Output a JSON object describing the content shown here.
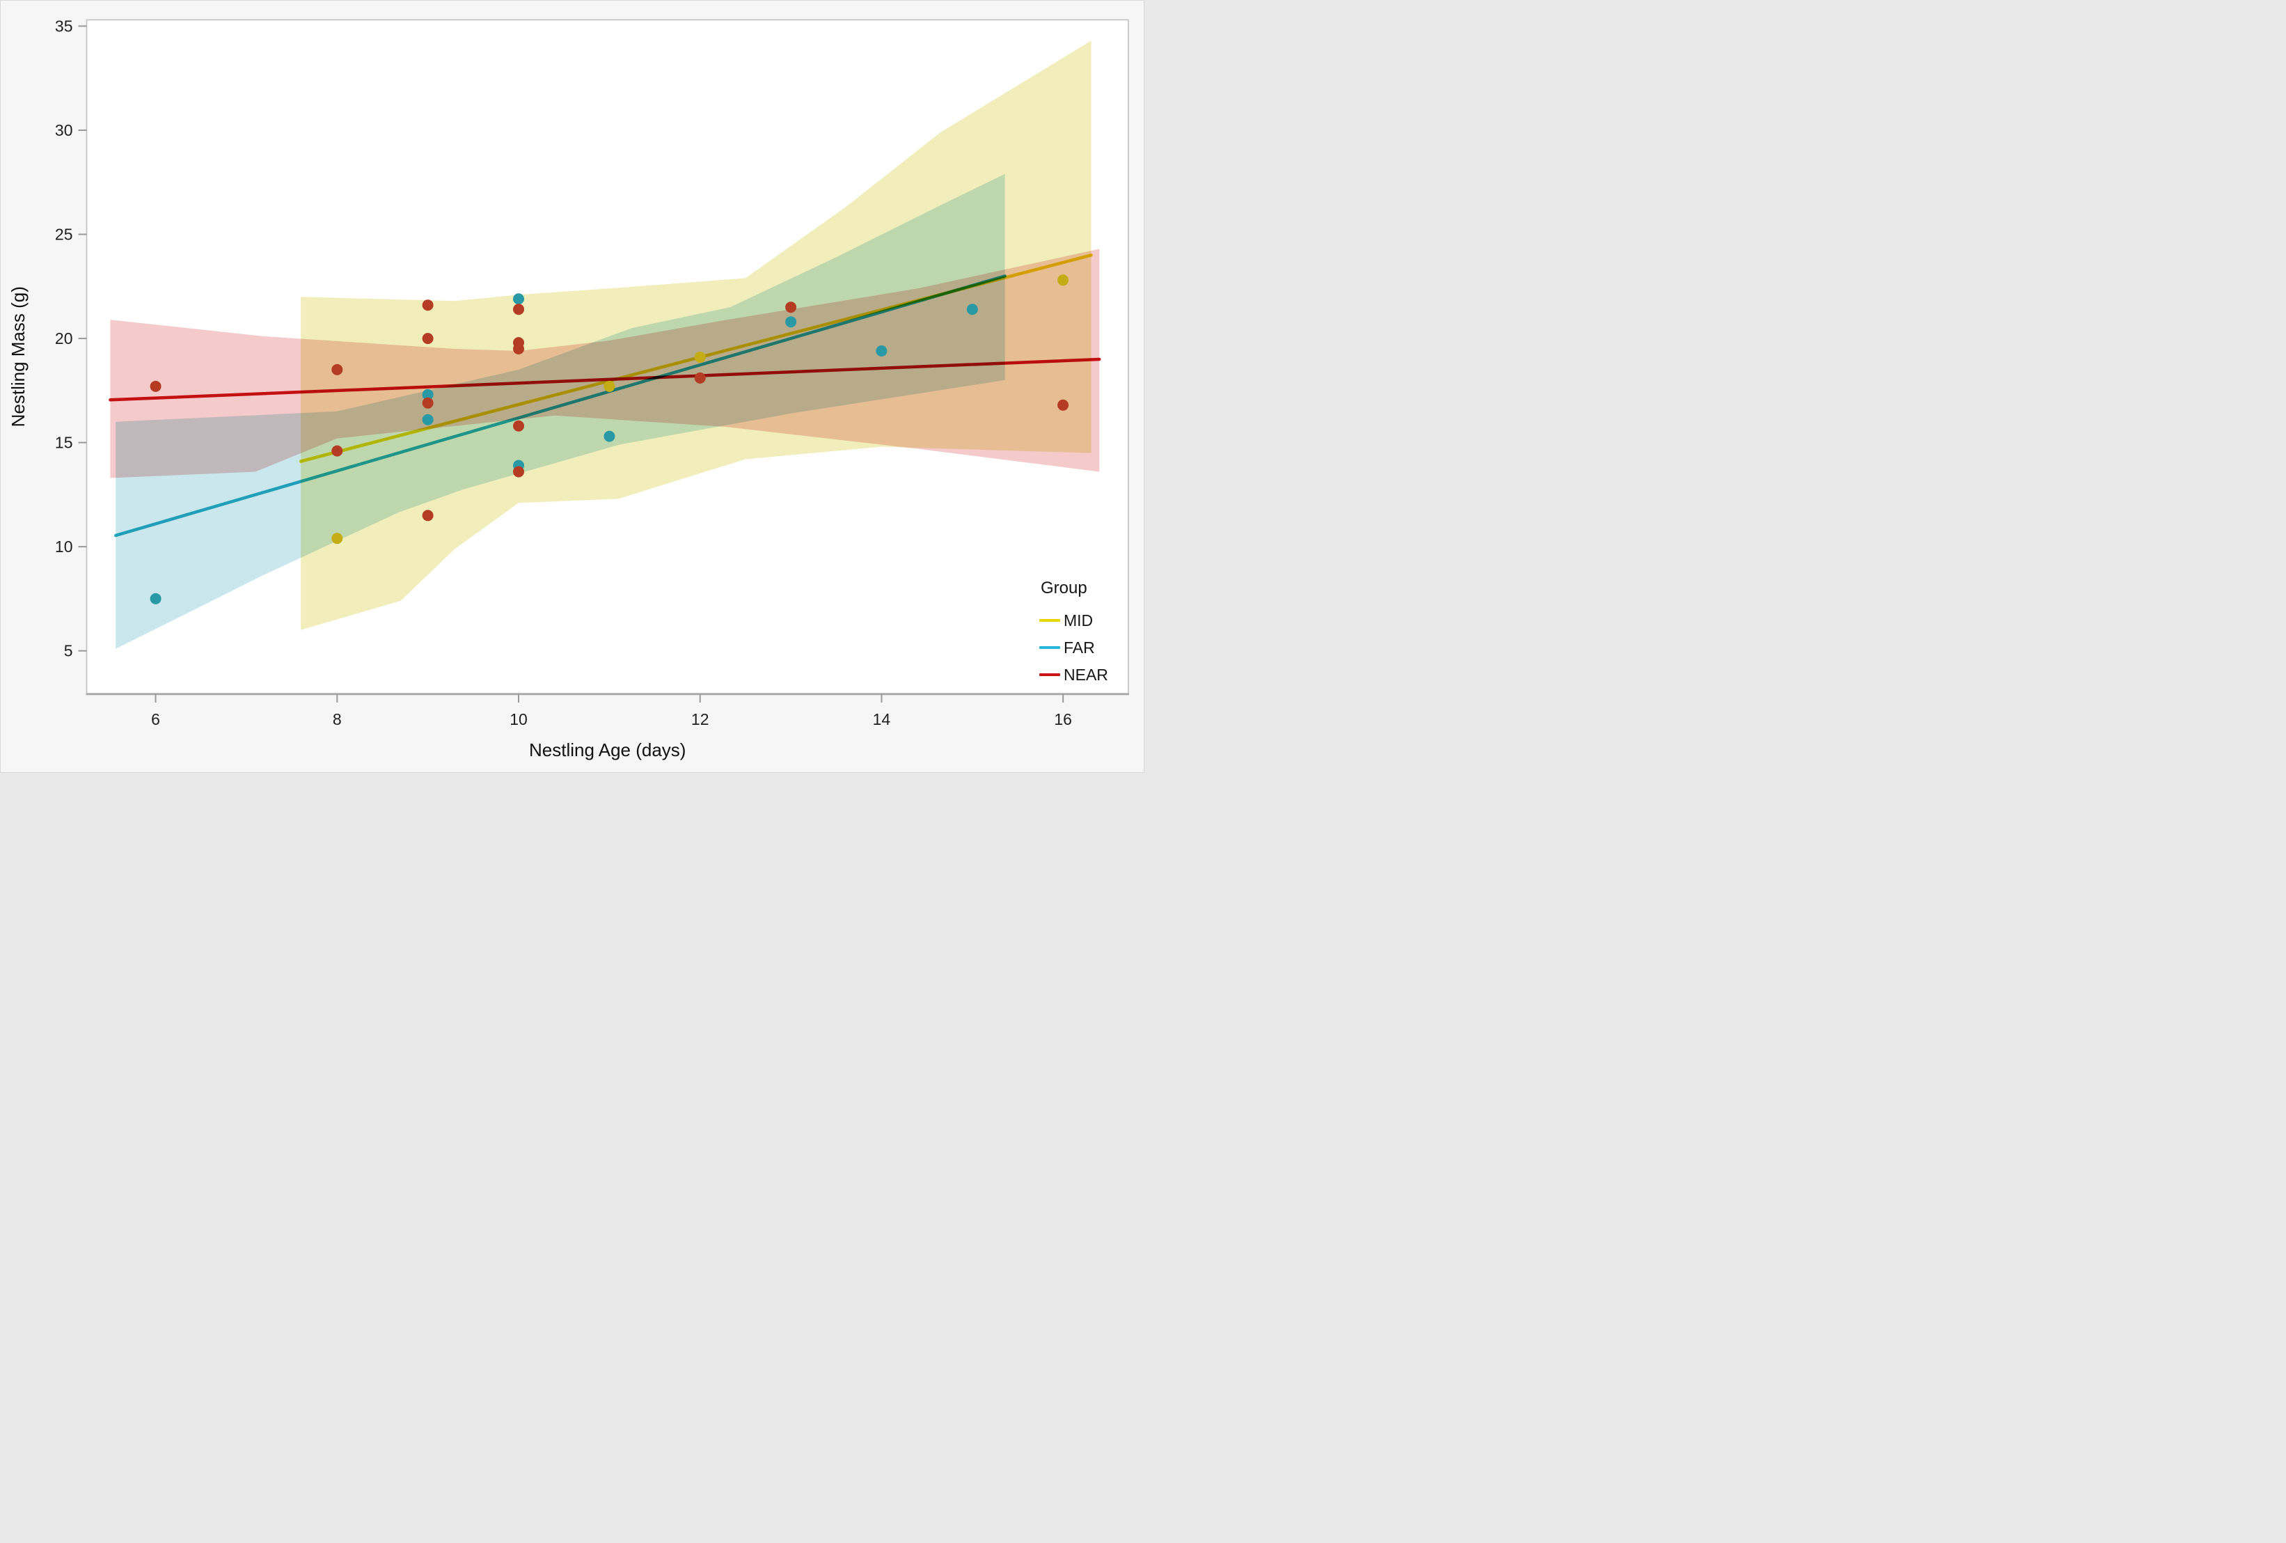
{
  "chart_data": {
    "type": "scatter",
    "title": "",
    "xlabel": "Nestling Age (days)",
    "ylabel": "Nestling Mass (g)",
    "x_ticks": [
      6,
      8,
      10,
      12,
      14,
      16
    ],
    "y_ticks": [
      5,
      10,
      15,
      20,
      25,
      30,
      35
    ],
    "x_range": [
      5.24,
      16.72
    ],
    "y_range": [
      2.95,
      35.3
    ],
    "grid": "off",
    "background_color": "#f6f6f6",
    "plot_background": "#ffffff",
    "frame_color": "#bfbfbf",
    "legend": {
      "title": "Group",
      "position": "bottom-right",
      "entries": [
        {
          "label": "MID",
          "color": "#e5d800"
        },
        {
          "label": "FAR",
          "color": "#29b9d8"
        },
        {
          "label": "NEAR",
          "color": "#cc1414"
        }
      ]
    },
    "series": [
      {
        "name": "MID",
        "line_color": "#ecd600",
        "marker_color": "#c4ad14",
        "band_color": "#f2eebb",
        "fit_line": {
          "x": [
            7.6,
            16.31
          ],
          "y": [
            14.1,
            24.0
          ]
        },
        "band_top": [
          [
            7.6,
            22.0
          ],
          [
            9.3,
            21.8
          ],
          [
            10,
            22.1
          ],
          [
            11,
            22.4
          ],
          [
            12.5,
            22.9
          ],
          [
            13.6,
            26.3
          ],
          [
            14.65,
            29.9
          ],
          [
            16.31,
            34.3
          ]
        ],
        "band_bottom": [
          [
            7.6,
            6.0
          ],
          [
            8.7,
            7.4
          ],
          [
            9.3,
            9.9
          ],
          [
            10,
            12.1
          ],
          [
            11.1,
            12.3
          ],
          [
            12.5,
            14.2
          ],
          [
            14,
            14.8
          ],
          [
            16.31,
            14.5
          ]
        ],
        "points": [
          [
            8,
            10.4
          ],
          [
            11,
            17.7
          ],
          [
            12,
            19.1
          ],
          [
            16,
            22.8
          ]
        ]
      },
      {
        "name": "FAR",
        "line_color": "#29b0c8",
        "marker_color": "#2899a5",
        "band_color": "#c9e7ec",
        "fit_line": {
          "x": [
            5.56,
            15.36
          ],
          "y": [
            10.54,
            23.0
          ]
        },
        "band_top": [
          [
            5.56,
            16.0
          ],
          [
            8,
            16.5
          ],
          [
            10,
            18.5
          ],
          [
            11.25,
            20.5
          ],
          [
            12.33,
            21.5
          ],
          [
            13.5,
            23.9
          ],
          [
            14.65,
            26.4
          ],
          [
            15.36,
            27.9
          ]
        ],
        "band_bottom": [
          [
            5.56,
            5.1
          ],
          [
            6.0,
            6.05
          ],
          [
            7.17,
            8.6
          ],
          [
            8.68,
            11.65
          ],
          [
            9.39,
            12.75
          ],
          [
            11.11,
            14.9
          ],
          [
            13,
            16.4
          ],
          [
            15.36,
            18.0
          ]
        ],
        "points": [
          [
            6,
            7.5
          ],
          [
            9,
            17.3
          ],
          [
            9,
            16.1
          ],
          [
            10,
            21.9
          ],
          [
            10,
            13.9
          ],
          [
            11,
            15.3
          ],
          [
            13,
            20.8
          ],
          [
            14,
            19.4
          ],
          [
            15,
            21.4
          ]
        ]
      },
      {
        "name": "NEAR",
        "line_color": "#cc1414",
        "marker_color": "#b43c22",
        "band_color": "#f4cbca",
        "fit_line": {
          "x": [
            5.5,
            16.4
          ],
          "y": [
            17.05,
            19.0
          ]
        },
        "band_top": [
          [
            5.5,
            20.9
          ],
          [
            7.2,
            20.1
          ],
          [
            9.3,
            19.5
          ],
          [
            10,
            19.4
          ],
          [
            11,
            19.9
          ],
          [
            12.3,
            20.9
          ],
          [
            14.4,
            22.4
          ],
          [
            16.4,
            24.3
          ]
        ],
        "band_bottom": [
          [
            5.5,
            13.3
          ],
          [
            7.1,
            13.6
          ],
          [
            8,
            15.2
          ],
          [
            10.4,
            16.3
          ],
          [
            12.3,
            15.75
          ],
          [
            14.4,
            14.7
          ],
          [
            16.4,
            13.6
          ]
        ],
        "points": [
          [
            6,
            17.7
          ],
          [
            8,
            18.5
          ],
          [
            8,
            14.6
          ],
          [
            9,
            21.6
          ],
          [
            9,
            20.0
          ],
          [
            9,
            16.9
          ],
          [
            9,
            11.5
          ],
          [
            10,
            21.4
          ],
          [
            10,
            19.8
          ],
          [
            10,
            19.5
          ],
          [
            10,
            15.8
          ],
          [
            10,
            13.6
          ],
          [
            12,
            18.1
          ],
          [
            13,
            21.5
          ],
          [
            16,
            16.8
          ]
        ]
      }
    ]
  }
}
